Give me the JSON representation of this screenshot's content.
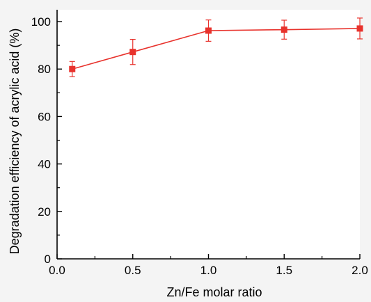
{
  "chart_data": {
    "type": "line",
    "xlabel": "Zn/Fe molar ratio",
    "ylabel": "Degradation efficiency of acrylic acid (%)",
    "xlim": [
      0.0,
      2.0
    ],
    "ylim": [
      0,
      105
    ],
    "x_ticks": [
      "0.0",
      "0.5",
      "1.0",
      "1.5",
      "2.0"
    ],
    "y_ticks": [
      "0",
      "20",
      "40",
      "60",
      "80",
      "100"
    ],
    "grid": false,
    "marker": "square",
    "series_color": "#e8322c",
    "series": [
      {
        "x": [
          0.1,
          0.5,
          1.0,
          1.5,
          2.0
        ],
        "values": [
          80.0,
          87.2,
          96.2,
          96.6,
          97.1
        ],
        "error": [
          3.2,
          5.3,
          4.5,
          4.0,
          4.4
        ]
      }
    ]
  }
}
